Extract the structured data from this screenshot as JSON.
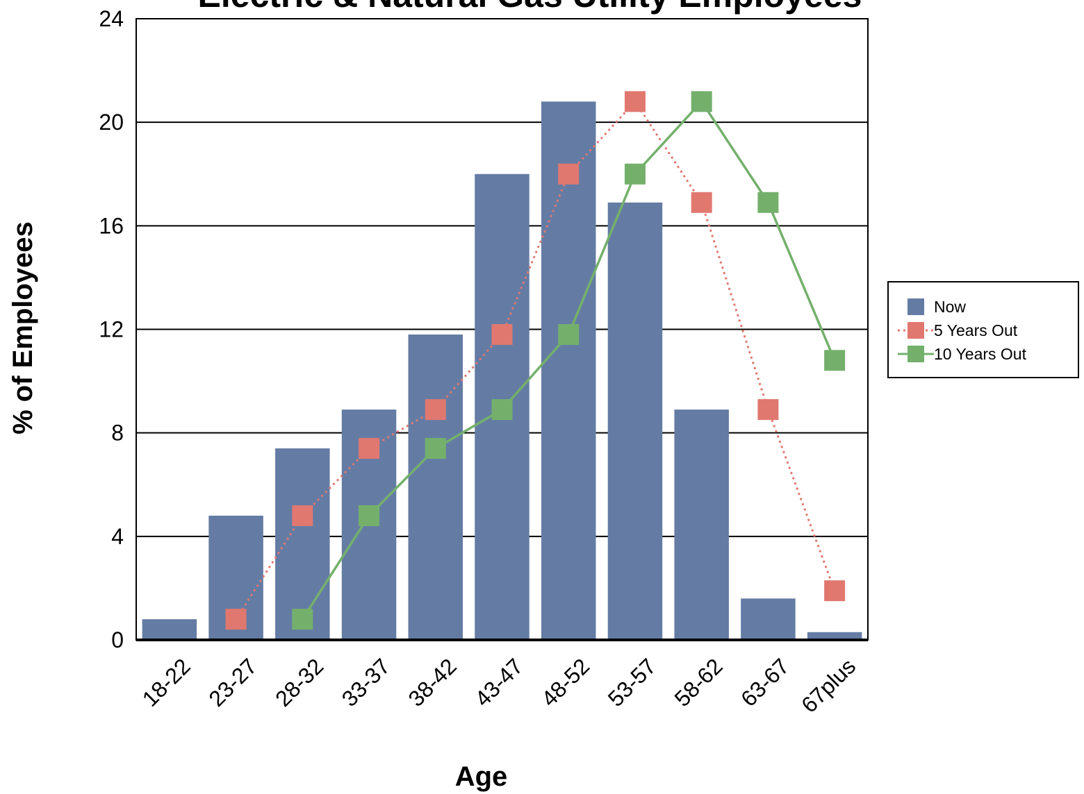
{
  "chart_data": {
    "type": "bar",
    "title": "Electric & Natural Gas Utility Employees",
    "xlabel": "Age",
    "ylabel": "% of Employees",
    "categories": [
      "18-22",
      "23-27",
      "28-32",
      "33-37",
      "38-42",
      "43-47",
      "48-52",
      "53-57",
      "58-62",
      "63-67",
      "67plus"
    ],
    "ylim": [
      0,
      24
    ],
    "yticks": [
      0,
      4,
      8,
      12,
      16,
      20,
      24
    ],
    "grid": true,
    "legend_position": "right",
    "series": [
      {
        "name": "Now",
        "type": "bar",
        "color": "#647ca4",
        "values": [
          0.8,
          4.8,
          7.4,
          8.9,
          11.8,
          18.0,
          20.8,
          16.9,
          8.9,
          1.6,
          0.3
        ]
      },
      {
        "name": "5 Years Out",
        "type": "line",
        "style": "dotted",
        "color": "#e07870",
        "values": [
          null,
          0.8,
          4.8,
          7.4,
          8.9,
          11.8,
          18.0,
          20.8,
          16.9,
          8.9,
          1.9
        ]
      },
      {
        "name": "10 Years Out",
        "type": "line",
        "style": "solid",
        "color": "#74b06c",
        "values": [
          null,
          null,
          0.8,
          4.8,
          7.4,
          8.9,
          11.8,
          18.0,
          20.8,
          16.9,
          10.8
        ]
      }
    ]
  }
}
